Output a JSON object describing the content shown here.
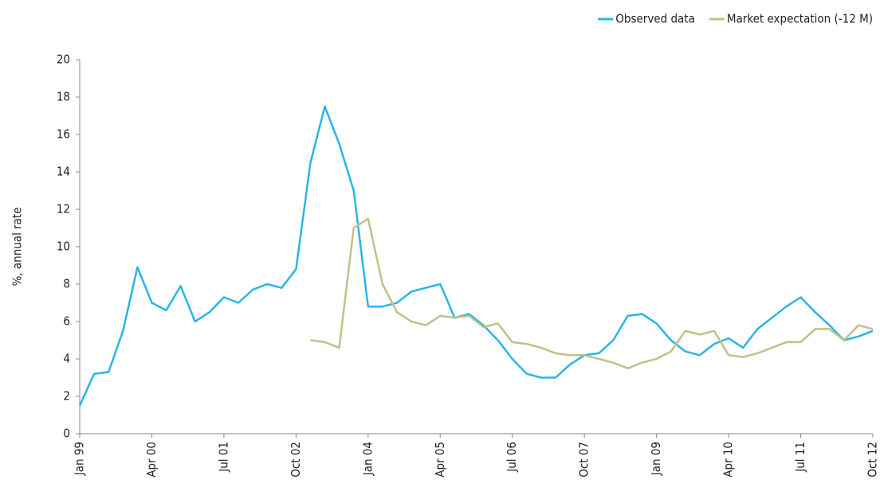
{
  "chart_data": {
    "type": "line",
    "y_label": "%, annual rate",
    "categories": [
      "Jan 99",
      null,
      null,
      null,
      null,
      "Apr 00",
      null,
      null,
      null,
      null,
      "Jul 01",
      null,
      null,
      null,
      null,
      "Oct 02",
      null,
      null,
      null,
      null,
      "Jan 04",
      null,
      null,
      null,
      null,
      "Apr 05",
      null,
      null,
      null,
      null,
      "Jul 06",
      null,
      null,
      null,
      null,
      "Oct 07",
      null,
      null,
      null,
      null,
      "Jan 09",
      null,
      null,
      null,
      null,
      "Apr 10",
      null,
      null,
      null,
      null,
      "Jul 11",
      null,
      null,
      null,
      null,
      "Oct 12"
    ],
    "series": [
      {
        "name": "Observed data",
        "color": "#29b5e8",
        "values": [
          1.5,
          3.2,
          3.3,
          5.5,
          8.9,
          7.0,
          6.6,
          7.9,
          6.0,
          6.5,
          7.3,
          7.0,
          7.7,
          8.0,
          7.8,
          8.8,
          14.5,
          17.5,
          15.5,
          13,
          6.8,
          6.8,
          7.0,
          7.6,
          7.8,
          8.0,
          6.2,
          6.4,
          5.8,
          5.0,
          4.0,
          3.2,
          3.0,
          3.0,
          3.7,
          4.2,
          4.3,
          5.0,
          6.3,
          6.4,
          5.9,
          5.0,
          4.4,
          4.2,
          4.8,
          5.1,
          4.6,
          5.6,
          6.2,
          6.8,
          7.3,
          6.5,
          5.8,
          5.0,
          5.2,
          5.5
        ]
      },
      {
        "name": "Market expectation (-12 M)",
        "color": "#c2c08a",
        "values": [
          null,
          null,
          null,
          null,
          null,
          null,
          null,
          null,
          null,
          null,
          null,
          null,
          null,
          null,
          null,
          null,
          5.0,
          4.9,
          4.6,
          11,
          11.5,
          8,
          6.5,
          6.0,
          5.8,
          6.3,
          6.2,
          6.3,
          5.7,
          5.9,
          4.9,
          4.8,
          4.6,
          4.3,
          4.2,
          4.2,
          4.0,
          3.8,
          3.5,
          3.8,
          4.0,
          4.4,
          5.5,
          5.3,
          5.5,
          4.2,
          4.1,
          4.3,
          4.6,
          4.9,
          4.9,
          5.6,
          5.6,
          5.0,
          5.8,
          5.6
        ]
      }
    ],
    "ylim": [
      0,
      20
    ],
    "yticks": [
      0,
      2,
      4,
      6,
      8,
      10,
      12,
      14,
      16,
      18,
      20
    ],
    "grid": false,
    "legend": "top-right"
  }
}
